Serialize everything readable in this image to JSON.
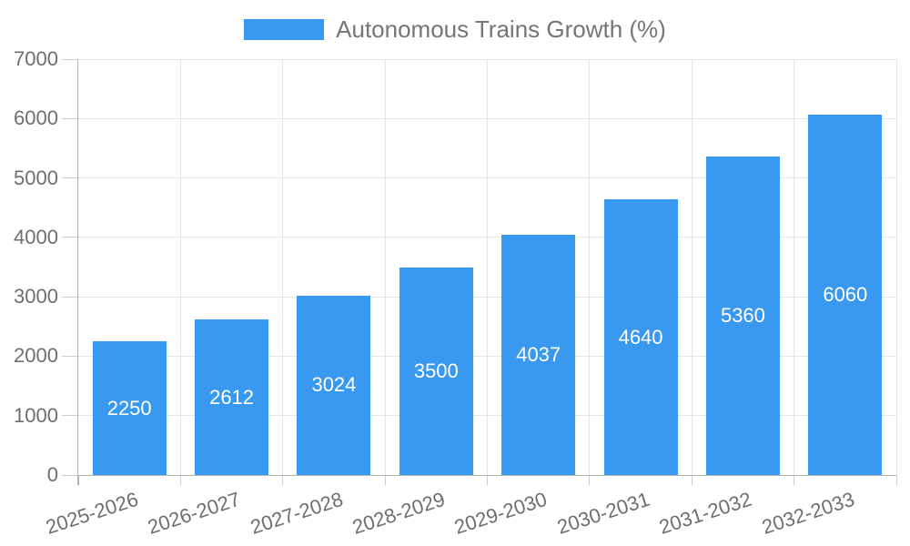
{
  "colors": {
    "bar": "#3998f0",
    "gridline": "#e6e6e6",
    "tick": "#cccccc",
    "axis": "#b3b3b3",
    "axis_text": "#6e6e6e",
    "legend_text": "#757575",
    "bar_label_text": "#ffffff",
    "background": "#ffffff"
  },
  "chart_data": {
    "type": "bar",
    "title": "",
    "categories": [
      "2025-2026",
      "2026-2027",
      "2027-2028",
      "2028-2029",
      "2029-2030",
      "2030-2031",
      "2031-2032",
      "2032-2033"
    ],
    "series": [
      {
        "name": "Autonomous Trains Growth (%)",
        "values": [
          2250,
          2612,
          3024,
          3500,
          4037,
          4640,
          5360,
          6060
        ],
        "color": "#3998f0"
      }
    ],
    "bar_value_labels": [
      "2250",
      "2612",
      "3024",
      "3500",
      "4037",
      "4640",
      "5360",
      "6060"
    ],
    "xlabel": "",
    "ylabel": "",
    "ylim": [
      0,
      7000
    ],
    "ytick_step": 1000,
    "ytick_labels": [
      "0",
      "1000",
      "2000",
      "3000",
      "4000",
      "5000",
      "6000",
      "7000"
    ],
    "grid": "on",
    "legend_position": "top",
    "x_label_rotation_deg": -18
  }
}
